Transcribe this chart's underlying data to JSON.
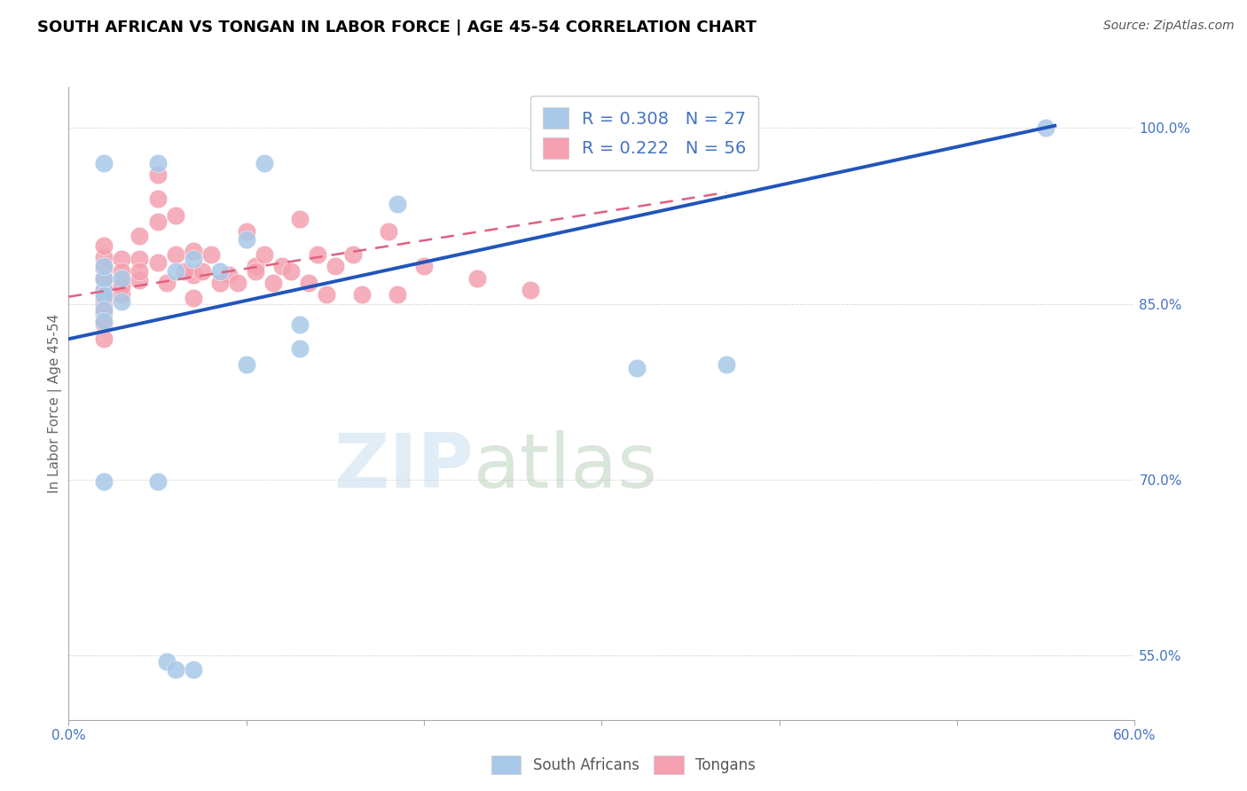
{
  "title": "SOUTH AFRICAN VS TONGAN IN LABOR FORCE | AGE 45-54 CORRELATION CHART",
  "source": "Source: ZipAtlas.com",
  "ylabel": "In Labor Force | Age 45-54",
  "watermark": "ZIPatlas",
  "xlim": [
    0.0,
    0.6
  ],
  "ylim": [
    0.495,
    1.035
  ],
  "yticks": [
    0.55,
    0.7,
    0.85,
    1.0
  ],
  "ytick_labels": [
    "55.0%",
    "70.0%",
    "85.0%",
    "100.0%"
  ],
  "xticks": [
    0.0,
    0.1,
    0.2,
    0.3,
    0.4,
    0.5,
    0.6
  ],
  "xtick_labels": [
    "0.0%",
    "",
    "",
    "",
    "",
    "",
    "60.0%"
  ],
  "legend_r_blue": "R = 0.308",
  "legend_n_blue": "N = 27",
  "legend_r_pink": "R = 0.222",
  "legend_n_pink": "N = 56",
  "blue_color": "#a8c8e8",
  "pink_color": "#f4a0b0",
  "line_blue": "#2255bb",
  "line_pink": "#e06080",
  "axis_color": "#4472c4",
  "grid_color": "#c8c8c8",
  "blue_scatter_x": [
    0.02,
    0.05,
    0.11,
    0.185,
    0.02,
    0.02,
    0.02,
    0.02,
    0.02,
    0.02,
    0.03,
    0.03,
    0.06,
    0.07,
    0.1,
    0.085,
    0.1,
    0.13,
    0.13,
    0.02,
    0.05,
    0.055,
    0.06,
    0.07,
    0.55,
    0.37,
    0.32
  ],
  "blue_scatter_y": [
    0.97,
    0.97,
    0.97,
    0.935,
    0.862,
    0.872,
    0.882,
    0.857,
    0.845,
    0.835,
    0.872,
    0.852,
    0.878,
    0.888,
    0.905,
    0.878,
    0.798,
    0.812,
    0.832,
    0.698,
    0.698,
    0.545,
    0.538,
    0.538,
    1.0,
    0.798,
    0.795
  ],
  "pink_scatter_x": [
    0.02,
    0.02,
    0.02,
    0.02,
    0.02,
    0.02,
    0.02,
    0.02,
    0.02,
    0.02,
    0.02,
    0.03,
    0.03,
    0.03,
    0.03,
    0.04,
    0.04,
    0.04,
    0.05,
    0.05,
    0.05,
    0.06,
    0.06,
    0.07,
    0.07,
    0.07,
    0.08,
    0.09,
    0.1,
    0.105,
    0.11,
    0.12,
    0.13,
    0.14,
    0.15,
    0.16,
    0.18,
    0.2,
    0.23,
    0.26,
    0.02,
    0.03,
    0.04,
    0.05,
    0.055,
    0.065,
    0.075,
    0.085,
    0.095,
    0.105,
    0.115,
    0.125,
    0.135,
    0.145,
    0.165,
    0.185
  ],
  "pink_scatter_y": [
    0.87,
    0.88,
    0.89,
    0.9,
    0.86,
    0.85,
    0.842,
    0.833,
    0.862,
    0.872,
    0.82,
    0.888,
    0.878,
    0.868,
    0.858,
    0.908,
    0.888,
    0.87,
    0.96,
    0.94,
    0.92,
    0.925,
    0.892,
    0.895,
    0.875,
    0.855,
    0.892,
    0.875,
    0.912,
    0.882,
    0.892,
    0.882,
    0.922,
    0.892,
    0.882,
    0.892,
    0.912,
    0.882,
    0.872,
    0.862,
    0.855,
    0.865,
    0.878,
    0.885,
    0.868,
    0.878,
    0.878,
    0.868,
    0.868,
    0.878,
    0.868,
    0.878,
    0.868,
    0.858,
    0.858,
    0.858
  ],
  "blue_trendline_x": [
    0.0,
    0.555
  ],
  "blue_trendline_y": [
    0.82,
    1.002
  ],
  "pink_trendline_x": [
    0.0,
    0.37
  ],
  "pink_trendline_y": [
    0.856,
    0.945
  ]
}
